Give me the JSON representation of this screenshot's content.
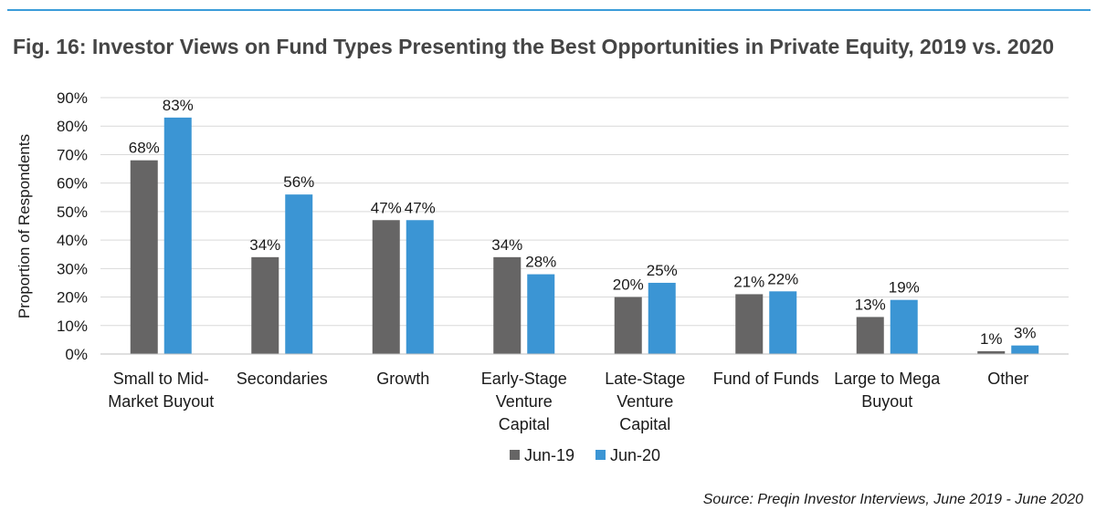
{
  "title": "Fig. 16: Investor Views on Fund Types Presenting the Best Opportunities in Private Equity, 2019 vs. 2020",
  "source": "Source: Preqin Investor Interviews, June 2019 - June 2020",
  "colors": {
    "series_1": "#666565",
    "series_2": "#3b95d4",
    "rule": "#3b9cd9",
    "grid": "#d9d9d9"
  },
  "chart_data": {
    "type": "bar",
    "title": "Fig. 16: Investor Views on Fund Types Presenting the Best Opportunities in Private Equity, 2019 vs. 2020",
    "xlabel": "",
    "ylabel": "Proportion of Respondents",
    "ylim": [
      0,
      90
    ],
    "yticks": [
      "0%",
      "10%",
      "20%",
      "30%",
      "40%",
      "50%",
      "60%",
      "70%",
      "80%",
      "90%"
    ],
    "grid": true,
    "legend_position": "bottom",
    "categories": [
      [
        "Small to Mid-",
        "Market Buyout"
      ],
      [
        "Secondaries"
      ],
      [
        "Growth"
      ],
      [
        "Early-Stage",
        "Venture",
        "Capital"
      ],
      [
        "Late-Stage",
        "Venture",
        "Capital"
      ],
      [
        "Fund of Funds"
      ],
      [
        "Large to Mega",
        "Buyout"
      ],
      [
        "Other"
      ]
    ],
    "series": [
      {
        "name": "Jun-19",
        "values": [
          68,
          34,
          47,
          34,
          20,
          21,
          13,
          1
        ],
        "labels": [
          "68%",
          "34%",
          "47%",
          "34%",
          "20%",
          "21%",
          "13%",
          "1%"
        ]
      },
      {
        "name": "Jun-20",
        "values": [
          83,
          56,
          47,
          28,
          25,
          22,
          19,
          3
        ],
        "labels": [
          "83%",
          "56%",
          "47%",
          "28%",
          "25%",
          "22%",
          "19%",
          "3%"
        ]
      }
    ]
  }
}
